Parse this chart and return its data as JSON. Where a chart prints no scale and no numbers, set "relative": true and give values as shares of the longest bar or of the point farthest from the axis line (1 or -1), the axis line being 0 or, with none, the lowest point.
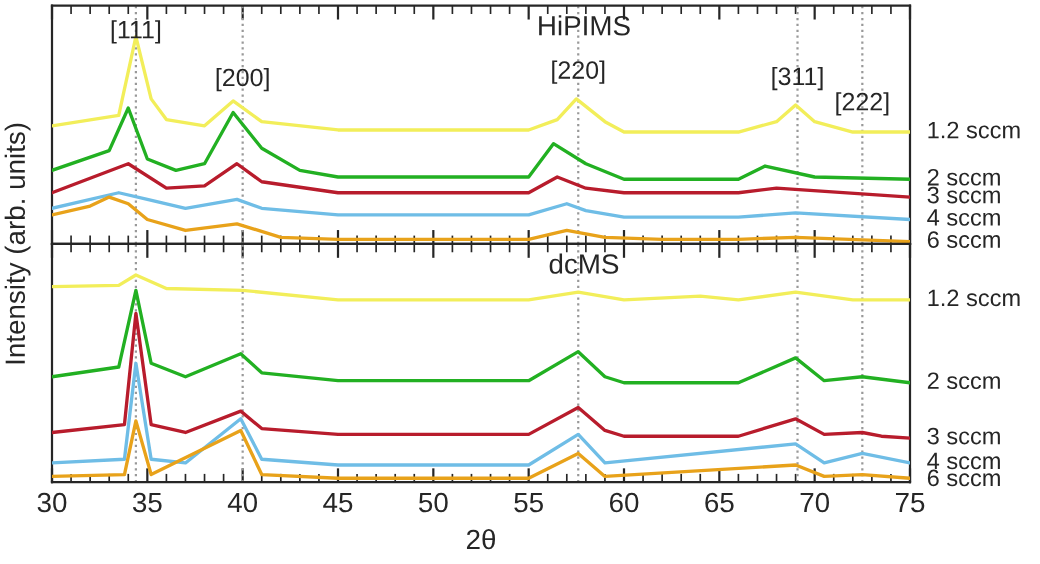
{
  "chart_data": [
    {
      "type": "line",
      "title": "HiPIMS",
      "ylabel": "Intensity (arb. units)",
      "relative": true,
      "xlim": [
        30,
        75
      ],
      "xticks": [
        30,
        35,
        40,
        45,
        50,
        55,
        60,
        65,
        70,
        75
      ],
      "tick_labels": false,
      "legend": false,
      "grid": false,
      "line_style": "solid",
      "marker": "none",
      "annotations": [
        {
          "text": "[111]",
          "x": 34.4
        },
        {
          "text": "[200]",
          "x": 40
        },
        {
          "text": "[220]",
          "x": 57.6
        },
        {
          "text": "[311]",
          "x": 69.1
        },
        {
          "text": "[222]",
          "x": 72.5
        }
      ],
      "ref_lines": [
        {
          "axis": "x",
          "value": 34.4,
          "color": "#999999",
          "line_style": "dotted"
        },
        {
          "axis": "x",
          "value": 40,
          "color": "#999999",
          "line_style": "dotted"
        },
        {
          "axis": "x",
          "value": 57.6,
          "color": "#999999",
          "line_style": "dotted"
        },
        {
          "axis": "x",
          "value": 69.1,
          "color": "#999999",
          "line_style": "dotted"
        },
        {
          "axis": "x",
          "value": 72.5,
          "color": "#999999",
          "line_style": "dotted"
        }
      ],
      "series": [
        {
          "name": "1.2 sccm",
          "color": "#f2ee5a",
          "x": [
            30,
            33.5,
            34.4,
            35.2,
            36,
            38,
            39.5,
            41,
            45,
            50,
            55,
            56.5,
            57.5,
            59,
            60,
            66,
            68,
            69,
            70,
            72,
            75
          ],
          "values": [
            0.57,
            0.62,
            1,
            0.7,
            0.6,
            0.57,
            0.69,
            0.59,
            0.55,
            0.55,
            0.55,
            0.6,
            0.7,
            0.59,
            0.54,
            0.54,
            0.59,
            0.67,
            0.59,
            0.54,
            0.54
          ]
        },
        {
          "name": "2 sccm",
          "color": "#22b022",
          "x": [
            30,
            33,
            34,
            35,
            36.5,
            38,
            39.5,
            41,
            43,
            45,
            55,
            56.3,
            58,
            60,
            66,
            67.4,
            70,
            75
          ],
          "values": [
            0.355,
            0.45,
            0.656,
            0.41,
            0.355,
            0.387,
            0.634,
            0.462,
            0.355,
            0.323,
            0.323,
            0.484,
            0.387,
            0.312,
            0.312,
            0.376,
            0.323,
            0.312
          ]
        },
        {
          "name": "3 sccm",
          "color": "#b81c2c",
          "x": [
            30,
            34,
            36,
            38,
            39.7,
            41,
            45,
            55,
            56.5,
            58,
            60,
            66,
            68,
            75
          ],
          "values": [
            0.247,
            0.387,
            0.269,
            0.28,
            0.387,
            0.3,
            0.247,
            0.247,
            0.323,
            0.269,
            0.247,
            0.247,
            0.269,
            0.226
          ]
        },
        {
          "name": "4 sccm",
          "color": "#6fbde6",
          "x": [
            30,
            33.5,
            35,
            37,
            39.7,
            41,
            45,
            55,
            57,
            58,
            60,
            66,
            69,
            75
          ],
          "values": [
            0.172,
            0.247,
            0.215,
            0.172,
            0.215,
            0.172,
            0.14,
            0.14,
            0.194,
            0.161,
            0.129,
            0.129,
            0.15,
            0.118
          ]
        },
        {
          "name": "6 sccm",
          "color": "#e8a21a",
          "x": [
            30,
            32,
            33,
            34,
            35,
            37,
            39.7,
            42,
            45,
            55,
            57,
            59,
            62,
            66,
            69,
            75
          ],
          "values": [
            0.14,
            0.183,
            0.226,
            0.194,
            0.118,
            0.065,
            0.097,
            0.032,
            0.022,
            0.022,
            0.065,
            0.032,
            0.022,
            0.022,
            0.032,
            0.011
          ]
        }
      ]
    },
    {
      "type": "line",
      "title": "dcMS",
      "xlabel": "2θ",
      "relative": true,
      "xlim": [
        30,
        75
      ],
      "xticks": [
        30,
        35,
        40,
        45,
        50,
        55,
        60,
        65,
        70,
        75
      ],
      "tick_labels": "x",
      "legend": false,
      "grid": false,
      "line_style": "solid",
      "marker": "none",
      "ref_lines": [
        {
          "axis": "x",
          "value": 34.4,
          "color": "#999999",
          "line_style": "dotted"
        },
        {
          "axis": "x",
          "value": 40,
          "color": "#999999",
          "line_style": "dotted"
        },
        {
          "axis": "x",
          "value": 57.6,
          "color": "#999999",
          "line_style": "dotted"
        },
        {
          "axis": "x",
          "value": 69.1,
          "color": "#999999",
          "line_style": "dotted"
        },
        {
          "axis": "x",
          "value": 72.5,
          "color": "#999999",
          "line_style": "dotted"
        }
      ],
      "series": [
        {
          "name": "1.2 sccm",
          "color": "#f2ee5a",
          "x": [
            30,
            33.5,
            34.4,
            36,
            40,
            45,
            55,
            57.6,
            60,
            64,
            66,
            69,
            72,
            75
          ],
          "values": [
            0.944,
            0.95,
            1,
            0.935,
            0.926,
            0.88,
            0.88,
            0.917,
            0.88,
            0.898,
            0.88,
            0.917,
            0.88,
            0.88
          ]
        },
        {
          "name": "2 sccm",
          "color": "#22b022",
          "x": [
            30,
            33.5,
            34.4,
            35.2,
            37,
            39.9,
            41,
            45,
            55,
            57.6,
            59,
            60,
            66,
            69,
            70.5,
            72.5,
            75
          ],
          "values": [
            0.509,
            0.556,
            0.926,
            0.574,
            0.509,
            0.62,
            0.528,
            0.49,
            0.49,
            0.63,
            0.509,
            0.48,
            0.48,
            0.6,
            0.49,
            0.509,
            0.48
          ]
        },
        {
          "name": "3 sccm",
          "color": "#b81c2c",
          "x": [
            30,
            33.8,
            34.4,
            35.2,
            37,
            39.9,
            41,
            45,
            55,
            57.6,
            59,
            60,
            66,
            69,
            70.5,
            72.5,
            73.5,
            75
          ],
          "values": [
            0.24,
            0.278,
            0.815,
            0.278,
            0.24,
            0.343,
            0.259,
            0.231,
            0.231,
            0.361,
            0.25,
            0.222,
            0.222,
            0.306,
            0.231,
            0.24,
            0.222,
            0.213
          ]
        },
        {
          "name": "4 sccm",
          "color": "#6fbde6",
          "x": [
            30,
            33.8,
            34.4,
            35.2,
            37,
            39.9,
            41,
            45,
            55,
            57.6,
            59,
            69,
            70.5,
            72.5,
            75
          ],
          "values": [
            0.093,
            0.111,
            0.574,
            0.111,
            0.093,
            0.306,
            0.111,
            0.083,
            0.083,
            0.231,
            0.093,
            0.185,
            0.093,
            0.139,
            0.093
          ]
        },
        {
          "name": "6 sccm",
          "color": "#e8a21a",
          "x": [
            30,
            33.8,
            34.4,
            35.2,
            39.9,
            41,
            45,
            55,
            57.6,
            59,
            69,
            70.5,
            72.5,
            75
          ],
          "values": [
            0.028,
            0.037,
            0.296,
            0.037,
            0.25,
            0.037,
            0.019,
            0.019,
            0.139,
            0.028,
            0.083,
            0.028,
            0.037,
            0.019
          ]
        }
      ]
    }
  ]
}
